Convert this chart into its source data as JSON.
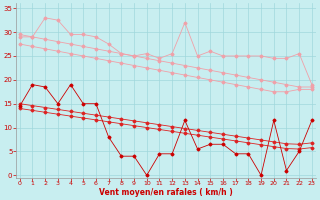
{
  "bg_color": "#c8eef0",
  "grid_color": "#a0d8dc",
  "light_pink": "#f0a0a8",
  "dark_red": "#cc0000",
  "medium_red": "#dd2222",
  "xlabel": "Vent moyen/en rafales ( km/h )",
  "tick_color": "#cc0000",
  "xlim": [
    -0.3,
    23.3
  ],
  "ylim": [
    -0.5,
    36
  ],
  "yticks": [
    0,
    5,
    10,
    15,
    20,
    25,
    30,
    35
  ],
  "xticks": [
    0,
    1,
    2,
    3,
    4,
    5,
    6,
    7,
    8,
    9,
    10,
    11,
    12,
    13,
    14,
    15,
    16,
    17,
    18,
    19,
    20,
    21,
    22,
    23
  ],
  "trend_gust_high_x": [
    0,
    1,
    2,
    3,
    4,
    5,
    6,
    7,
    8,
    9,
    10,
    11,
    12,
    13,
    14,
    15,
    16,
    17,
    18,
    19,
    20,
    21,
    22,
    23
  ],
  "trend_gust_high_y": [
    29.5,
    29.0,
    28.5,
    28.0,
    27.5,
    27.0,
    26.5,
    26.0,
    25.5,
    25.0,
    24.5,
    24.0,
    23.5,
    23.0,
    22.5,
    22.0,
    21.5,
    21.0,
    20.5,
    20.0,
    19.5,
    19.0,
    18.5,
    18.5
  ],
  "trend_gust_low_x": [
    0,
    1,
    2,
    3,
    4,
    5,
    6,
    7,
    8,
    9,
    10,
    11,
    12,
    13,
    14,
    15,
    16,
    17,
    18,
    19,
    20,
    21,
    22,
    23
  ],
  "trend_gust_low_y": [
    27.5,
    27.0,
    26.5,
    26.0,
    25.5,
    25.0,
    24.5,
    24.0,
    23.5,
    23.0,
    22.5,
    22.0,
    21.5,
    21.0,
    20.5,
    20.0,
    19.5,
    19.0,
    18.5,
    18.0,
    17.5,
    17.5,
    18.0,
    18.0
  ],
  "rafale_zigzag_x": [
    0,
    1,
    2,
    3,
    4,
    5,
    6,
    7,
    8,
    9,
    10,
    11,
    12,
    13,
    14,
    15,
    16,
    17,
    18,
    19,
    20,
    21,
    22,
    23
  ],
  "rafale_zigzag_y": [
    29.0,
    29.0,
    33.0,
    32.5,
    29.5,
    29.5,
    29.0,
    27.5,
    25.5,
    25.0,
    25.5,
    24.5,
    25.5,
    32.0,
    25.0,
    26.0,
    25.0,
    25.0,
    25.0,
    25.0,
    24.5,
    24.5,
    25.5,
    19.0
  ],
  "trend_mean_high_x": [
    0,
    1,
    2,
    3,
    4,
    5,
    6,
    7,
    8,
    9,
    10,
    11,
    12,
    13,
    14,
    15,
    16,
    17,
    18,
    19,
    20,
    21,
    22,
    23
  ],
  "trend_mean_high_y": [
    15.0,
    14.6,
    14.2,
    13.8,
    13.4,
    13.0,
    12.6,
    12.2,
    11.8,
    11.4,
    11.0,
    10.6,
    10.2,
    9.8,
    9.4,
    9.0,
    8.6,
    8.2,
    7.8,
    7.4,
    7.0,
    6.6,
    6.5,
    6.8
  ],
  "trend_mean_low_x": [
    0,
    1,
    2,
    3,
    4,
    5,
    6,
    7,
    8,
    9,
    10,
    11,
    12,
    13,
    14,
    15,
    16,
    17,
    18,
    19,
    20,
    21,
    22,
    23
  ],
  "trend_mean_low_y": [
    14.0,
    13.6,
    13.2,
    12.8,
    12.4,
    12.0,
    11.6,
    11.2,
    10.8,
    10.4,
    10.0,
    9.6,
    9.2,
    8.8,
    8.4,
    8.0,
    7.6,
    7.2,
    6.8,
    6.4,
    6.0,
    5.6,
    5.5,
    5.8
  ],
  "wind_mean_x": [
    0,
    1,
    2,
    3,
    4,
    5,
    6,
    7,
    8,
    9,
    10,
    11,
    12,
    13,
    14,
    15,
    16,
    17,
    18,
    19,
    20,
    21,
    22,
    23
  ],
  "wind_mean_y": [
    14.5,
    19.0,
    18.5,
    15.0,
    19.0,
    15.0,
    15.0,
    8.0,
    4.0,
    4.0,
    0.0,
    4.5,
    4.5,
    11.5,
    5.5,
    6.5,
    6.5,
    4.5,
    4.5,
    0.0,
    11.5,
    1.0,
    5.0,
    11.5
  ]
}
